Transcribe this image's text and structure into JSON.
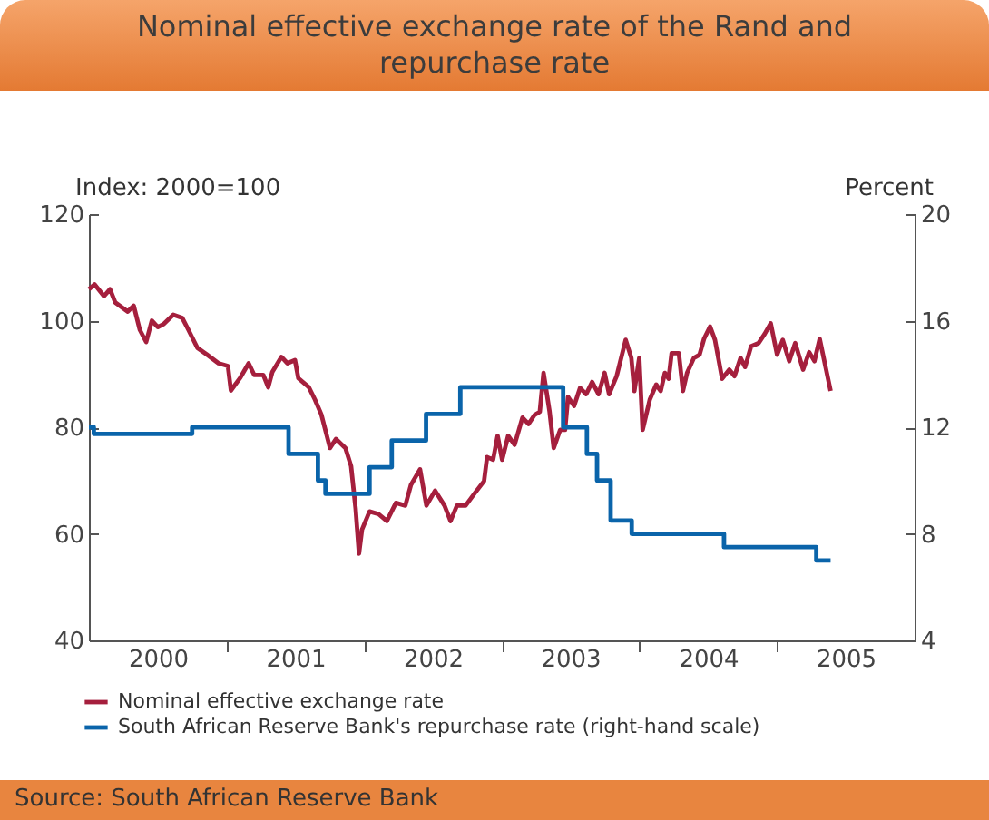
{
  "chart_data": {
    "type": "line",
    "title": "Nominal effective exchange rate of the Rand and repurchase rate",
    "ylabel": "Index: 2000=100",
    "y2label": "Percent",
    "xlim": [
      "2000-01-01",
      "2006-01-01"
    ],
    "xticks": [
      {
        "value": "2000-07-02",
        "label": "2000"
      },
      {
        "value": "2001-01-01",
        "label": null
      },
      {
        "value": "2001-07-02",
        "label": "2001"
      },
      {
        "value": "2002-01-01",
        "label": null
      },
      {
        "value": "2002-07-02",
        "label": "2002"
      },
      {
        "value": "2003-01-01",
        "label": null
      },
      {
        "value": "2003-07-02",
        "label": "2003"
      },
      {
        "value": "2004-01-01",
        "label": null
      },
      {
        "value": "2004-07-02",
        "label": "2004"
      },
      {
        "value": "2005-01-01",
        "label": null
      },
      {
        "value": "2005-07-02",
        "label": "2005"
      }
    ],
    "ylim": [
      40,
      120
    ],
    "yticks": [
      40,
      60,
      80,
      100,
      120
    ],
    "y2lim": [
      4,
      20
    ],
    "y2ticks": [
      4,
      8,
      12,
      16,
      20
    ],
    "grid": false,
    "legend": "bottom left",
    "line_style": "solid",
    "marker": "none",
    "series": [
      {
        "name": "Nominal effective exchange rate",
        "color": "#a51f3d",
        "type": "line",
        "x": [
          "2000-01-01",
          "2000-01-16",
          "2000-02-10",
          "2000-02-26",
          "2000-03-11",
          "2000-04-13",
          "2000-04-29",
          "2000-05-15",
          "2000-06-01",
          "2000-06-16",
          "2000-07-02",
          "2000-07-18",
          "2000-08-12",
          "2000-09-05",
          "2000-09-21",
          "2000-10-15",
          "2000-11-08",
          "2000-12-10",
          "2001-01-04",
          "2001-01-12",
          "2001-02-05",
          "2001-02-28",
          "2001-03-15",
          "2001-04-08",
          "2001-04-21",
          "2001-05-02",
          "2001-05-26",
          "2001-06-11",
          "2001-07-01",
          "2001-07-10",
          "2001-08-07",
          "2001-08-23",
          "2001-09-09",
          "2001-10-02",
          "2001-10-18",
          "2001-11-12",
          "2001-11-27",
          "2001-12-09",
          "2001-12-18",
          "2001-12-26",
          "2002-01-15",
          "2002-02-08",
          "2002-03-02",
          "2002-03-26",
          "2002-04-20",
          "2002-05-05",
          "2002-05-29",
          "2002-06-15",
          "2002-07-08",
          "2002-08-02",
          "2002-08-18",
          "2002-09-04",
          "2002-09-27",
          "2002-10-21",
          "2002-11-15",
          "2002-11-23",
          "2002-12-09",
          "2002-12-21",
          "2003-01-02",
          "2003-01-18",
          "2003-02-04",
          "2003-02-25",
          "2003-03-13",
          "2003-03-29",
          "2003-04-12",
          "2003-04-22",
          "2003-05-08",
          "2003-05-19",
          "2003-06-05",
          "2003-06-18",
          "2003-06-26",
          "2003-07-12",
          "2003-07-28",
          "2003-08-13",
          "2003-08-29",
          "2003-09-15",
          "2003-10-01",
          "2003-10-13",
          "2003-11-02",
          "2003-11-26",
          "2003-12-11",
          "2003-12-19",
          "2004-01-01",
          "2004-01-10",
          "2004-01-29",
          "2004-02-15",
          "2004-02-27",
          "2004-03-09",
          "2004-03-19",
          "2004-03-27",
          "2004-04-15",
          "2004-04-26",
          "2004-05-07",
          "2004-05-25",
          "2004-06-09",
          "2004-06-21",
          "2004-07-07",
          "2004-07-20",
          "2004-08-08",
          "2004-08-27",
          "2004-09-10",
          "2004-09-26",
          "2004-10-08",
          "2004-10-24",
          "2004-11-13",
          "2004-11-29",
          "2004-12-15",
          "2005-01-01",
          "2005-01-16",
          "2005-02-02",
          "2005-02-18",
          "2005-03-11",
          "2005-03-27",
          "2005-04-10",
          "2005-04-24",
          "2005-05-23"
        ],
        "values": [
          105.9,
          106.8,
          104.6,
          105.9,
          103.4,
          101.7,
          102.8,
          98.3,
          96.0,
          100.0,
          98.8,
          99.4,
          101.1,
          100.5,
          98.3,
          94.9,
          93.7,
          92.0,
          91.5,
          86.9,
          89.2,
          92.0,
          89.8,
          89.8,
          87.5,
          90.4,
          93.2,
          92.0,
          92.6,
          89.2,
          87.5,
          85.2,
          82.4,
          76.1,
          77.8,
          76.1,
          72.7,
          64.8,
          56.3,
          60.8,
          64.2,
          63.7,
          62.4,
          65.8,
          65.3,
          69.2,
          72.1,
          65.3,
          68.1,
          65.3,
          62.4,
          65.3,
          65.3,
          67.6,
          69.9,
          74.4,
          73.9,
          78.4,
          73.9,
          78.4,
          76.7,
          81.8,
          80.6,
          82.3,
          82.9,
          90.2,
          82.9,
          76.1,
          79.5,
          79.5,
          85.7,
          84.0,
          87.4,
          86.2,
          88.5,
          86.2,
          90.2,
          86.2,
          89.6,
          96.4,
          93.0,
          86.8,
          93.0,
          79.5,
          85.2,
          88.0,
          86.8,
          90.2,
          89.1,
          93.9,
          93.9,
          86.8,
          90.2,
          93.0,
          93.6,
          96.6,
          98.9,
          96.4,
          89.1,
          90.8,
          89.6,
          93.0,
          91.3,
          95.2,
          95.8,
          97.5,
          99.5,
          93.6,
          96.4,
          92.4,
          95.8,
          90.8,
          94.1,
          92.4,
          96.6,
          86.8
        ]
      },
      {
        "name": "South African Reserve Bank's repurchase rate (right-hand scale)",
        "color": "#0a64aa",
        "type": "step",
        "axis": "y2",
        "x": [
          "2000-01-01",
          "2000-01-14",
          "2000-10-01",
          "2001-06-14",
          "2001-08-31",
          "2001-09-20",
          "2002-01-15",
          "2002-03-15",
          "2002-06-14",
          "2002-09-13",
          "2003-06-13",
          "2003-08-15",
          "2003-09-11",
          "2003-10-17",
          "2003-12-12",
          "2004-08-13",
          "2005-04-15",
          "2005-05-23"
        ],
        "values": [
          12.0,
          11.75,
          12.0,
          11.0,
          10.0,
          9.5,
          10.5,
          11.5,
          12.5,
          13.5,
          12.0,
          11.0,
          10.0,
          8.5,
          8.0,
          7.5,
          7.0,
          7.0
        ]
      }
    ],
    "annotations": [
      "Source: South African Reserve Bank"
    ]
  }
}
